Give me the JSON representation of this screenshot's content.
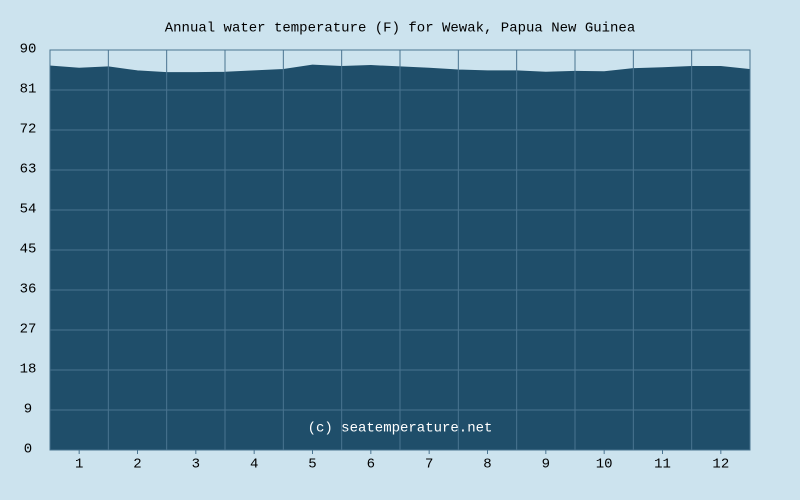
{
  "chart_data": {
    "type": "area",
    "title": "Annual water temperature (F) for Wewak, Papua New Guinea",
    "annotation": "(c) seatemperature.net",
    "x": [
      0,
      0.5,
      1,
      1.5,
      2,
      2.5,
      3,
      3.5,
      4,
      4.5,
      5,
      5.5,
      6,
      6.5,
      7,
      7.5,
      8,
      8.5,
      9,
      9.5,
      10,
      10.5,
      11,
      11.5,
      12
    ],
    "values": [
      86.4,
      85.9,
      86.2,
      85.3,
      84.9,
      84.9,
      85.0,
      85.3,
      85.6,
      86.6,
      86.3,
      86.5,
      86.2,
      85.9,
      85.5,
      85.3,
      85.3,
      85.0,
      85.2,
      85.1,
      85.8,
      86.0,
      86.3,
      86.3,
      85.6
    ],
    "color": "#1f4e6a",
    "xlim": [
      0,
      12
    ],
    "xticks": [
      {
        "value": 0.5,
        "label": "1"
      },
      {
        "value": 1.5,
        "label": "2"
      },
      {
        "value": 2.5,
        "label": "3"
      },
      {
        "value": 3.5,
        "label": "4"
      },
      {
        "value": 4.5,
        "label": "5"
      },
      {
        "value": 5.5,
        "label": "6"
      },
      {
        "value": 6.5,
        "label": "7"
      },
      {
        "value": 7.5,
        "label": "8"
      },
      {
        "value": 8.5,
        "label": "9"
      },
      {
        "value": 9.5,
        "label": "10"
      },
      {
        "value": 10.5,
        "label": "11"
      },
      {
        "value": 11.5,
        "label": "12"
      }
    ],
    "ylim": [
      0,
      90
    ],
    "yticks": [
      0,
      9,
      18,
      27,
      36,
      45,
      54,
      63,
      72,
      81,
      90
    ],
    "grid": true
  }
}
